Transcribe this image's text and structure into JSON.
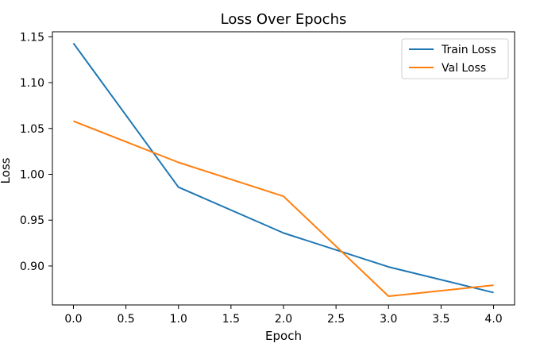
{
  "chart_data": {
    "type": "line",
    "title": "Loss Over Epochs",
    "xlabel": "Epoch",
    "ylabel": "Loss",
    "x": [
      0,
      1,
      2,
      3,
      4
    ],
    "xlim": [
      -0.2,
      4.2
    ],
    "ylim": [
      0.8575,
      1.1555
    ],
    "xticks": [
      0.0,
      0.5,
      1.0,
      1.5,
      2.0,
      2.5,
      3.0,
      3.5,
      4.0
    ],
    "xtick_labels": [
      "0.0",
      "0.5",
      "1.0",
      "1.5",
      "2.0",
      "2.5",
      "3.0",
      "3.5",
      "4.0"
    ],
    "yticks": [
      0.9,
      0.95,
      1.0,
      1.05,
      1.1,
      1.15
    ],
    "ytick_labels": [
      "0.90",
      "0.95",
      "1.00",
      "1.05",
      "1.10",
      "1.15"
    ],
    "grid": false,
    "legend_position": "top-right",
    "series": [
      {
        "name": "Train Loss",
        "color": "#1f77b4",
        "values": [
          1.143,
          0.986,
          0.936,
          0.899,
          0.871
        ]
      },
      {
        "name": "Val Loss",
        "color": "#ff7f0e",
        "values": [
          1.058,
          1.013,
          0.976,
          0.867,
          0.879
        ]
      }
    ]
  }
}
